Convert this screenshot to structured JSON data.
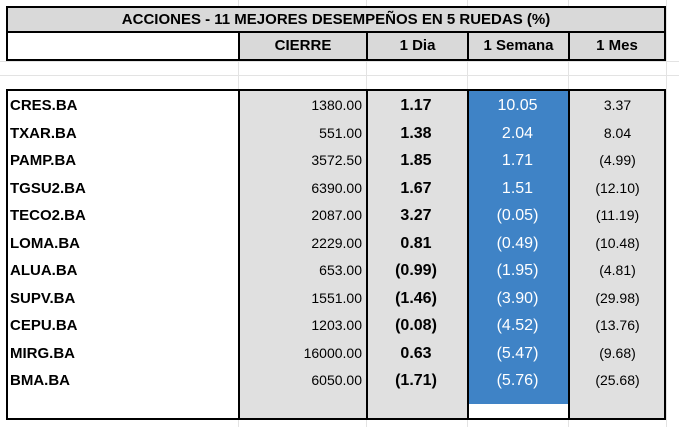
{
  "title": "ACCIONES   - 11  MEJORES DESEMPEÑOS EN 5 RUEDAS (%)",
  "headers": {
    "name": "",
    "close": "CIERRE",
    "day": "1 Dia",
    "week": "1 Semana",
    "month": "1 Mes"
  },
  "colors": {
    "header_bg": "#d9d9d9",
    "data_bg": "#e0e0e0",
    "week_bg": "#3f83c6",
    "week_text": "#ffffff"
  },
  "rows": [
    {
      "ticker": "CRES.BA",
      "close": "1380.00",
      "day": "1.17",
      "week": "10.05",
      "month": "3.37"
    },
    {
      "ticker": "TXAR.BA",
      "close": "551.00",
      "day": "1.38",
      "week": "2.04",
      "month": "8.04"
    },
    {
      "ticker": "PAMP.BA",
      "close": "3572.50",
      "day": "1.85",
      "week": "1.71",
      "month": "(4.99)"
    },
    {
      "ticker": "TGSU2.BA",
      "close": "6390.00",
      "day": "1.67",
      "week": "1.51",
      "month": "(12.10)"
    },
    {
      "ticker": "TECO2.BA",
      "close": "2087.00",
      "day": "3.27",
      "week": "(0.05)",
      "month": "(11.19)"
    },
    {
      "ticker": "LOMA.BA",
      "close": "2229.00",
      "day": "0.81",
      "week": "(0.49)",
      "month": "(10.48)"
    },
    {
      "ticker": "ALUA.BA",
      "close": "653.00",
      "day": "(0.99)",
      "week": "(1.95)",
      "month": "(4.81)"
    },
    {
      "ticker": "SUPV.BA",
      "close": "1551.00",
      "day": "(1.46)",
      "week": "(3.90)",
      "month": "(29.98)"
    },
    {
      "ticker": "CEPU.BA",
      "close": "1203.00",
      "day": "(0.08)",
      "week": "(4.52)",
      "month": "(13.76)"
    },
    {
      "ticker": "MIRG.BA",
      "close": "16000.00",
      "day": "0.63",
      "week": "(5.47)",
      "month": "(9.68)"
    },
    {
      "ticker": "BMA.BA",
      "close": "6050.00",
      "day": "(1.71)",
      "week": "(5.76)",
      "month": "(25.68)"
    }
  ]
}
